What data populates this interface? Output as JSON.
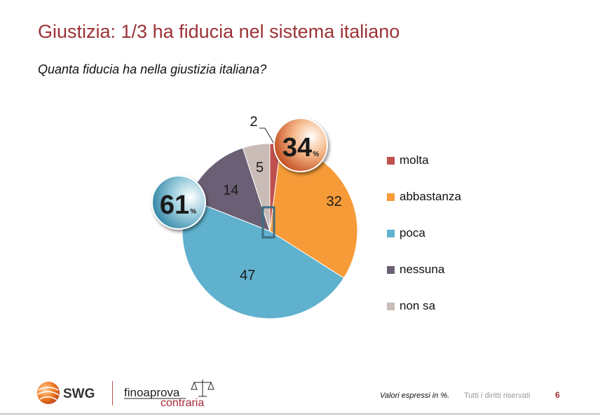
{
  "title": "Giustizia: 1/3 ha fiducia nel sistema italiano",
  "subtitle": "Quanta fiducia ha nella giustizia italiana?",
  "chart_data": {
    "type": "pie",
    "categories": [
      "molta",
      "abbastanza",
      "poca",
      "nessuna",
      "non sa"
    ],
    "values": [
      2,
      32,
      47,
      14,
      5
    ],
    "colors": [
      "#c0504d",
      "#f79b38",
      "#5fb1cd",
      "#6a5f74",
      "#c9bcb7"
    ],
    "unit": "%",
    "summaries": [
      {
        "value": "34",
        "unit": "%",
        "color": "orange"
      },
      {
        "value": "61",
        "unit": "%",
        "color": "blue"
      }
    ],
    "legend_position": "right"
  },
  "footer": {
    "note": "Valori espressi in %.",
    "rights": "Tutti i diritti riservati",
    "page": "6"
  },
  "logos": {
    "swg": "SWG",
    "fino_top": "finoaprova",
    "fino_bottom": "contraria"
  }
}
